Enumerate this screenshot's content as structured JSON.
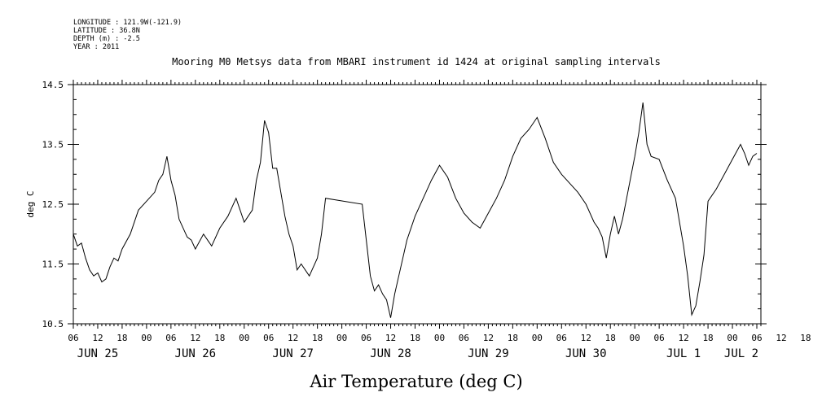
{
  "meta": {
    "longitude": "LONGITUDE : 121.9W(-121.9)",
    "latitude": "LATITUDE : 36.8N",
    "depth": "DEPTH (m) : -2.5",
    "year": "YEAR : 2011"
  },
  "chart_data": {
    "type": "line",
    "title": "Mooring M0 Metsys data from MBARI instrument id 1424 at original sampling intervals",
    "xlabel": "Air Temperature (deg C)",
    "ylabel": "deg C",
    "ylim": [
      10.5,
      14.5
    ],
    "xlim": [
      "2011-06-25 06:00",
      "2011-07-02 07:00"
    ],
    "yticks": [
      "10.5",
      "11.5",
      "12.5",
      "13.5",
      "14.5"
    ],
    "yticks_minor_step": 0.25,
    "xtick_hours": [
      "06",
      "12",
      "18",
      "00",
      "06",
      "12",
      "18",
      "00",
      "06",
      "12",
      "18",
      "00",
      "06",
      "12",
      "18",
      "00",
      "06",
      "12",
      "18",
      "00",
      "06",
      "12",
      "18",
      "00",
      "06",
      "12",
      "18",
      "00",
      "06",
      "12",
      "18",
      "00",
      "06"
    ],
    "day_labels": [
      "JUN 25",
      "JUN 26",
      "JUN 27",
      "JUN 28",
      "JUN 29",
      "JUN 30",
      "JUL 1",
      "JUL 2"
    ],
    "grid": false,
    "legend": "none",
    "series": [
      {
        "x": [
          "2011-06-25 06:00",
          "2011-06-25 07:00",
          "2011-06-25 08:00",
          "2011-06-25 09:00",
          "2011-06-25 10:00",
          "2011-06-25 11:00",
          "2011-06-25 12:00",
          "2011-06-25 13:00",
          "2011-06-25 14:00",
          "2011-06-25 15:00",
          "2011-06-25 16:00",
          "2011-06-25 17:00",
          "2011-06-25 18:00",
          "2011-06-25 20:00",
          "2011-06-25 22:00",
          "2011-06-26 00:00",
          "2011-06-26 02:00",
          "2011-06-26 03:00",
          "2011-06-26 04:00",
          "2011-06-26 05:00",
          "2011-06-26 06:00",
          "2011-06-26 07:00",
          "2011-06-26 08:00",
          "2011-06-26 10:00",
          "2011-06-26 11:00",
          "2011-06-26 12:00",
          "2011-06-26 14:00",
          "2011-06-26 16:00",
          "2011-06-26 18:00",
          "2011-06-26 20:00",
          "2011-06-26 22:00",
          "2011-06-27 00:00",
          "2011-06-27 01:00",
          "2011-06-27 02:00",
          "2011-06-27 03:00",
          "2011-06-27 04:00",
          "2011-06-27 05:00",
          "2011-06-27 06:00",
          "2011-06-27 07:00",
          "2011-06-27 08:00",
          "2011-06-27 09:00",
          "2011-06-27 10:00",
          "2011-06-27 11:00",
          "2011-06-27 12:00",
          "2011-06-27 13:00",
          "2011-06-27 14:00",
          "2011-06-27 16:00",
          "2011-06-27 18:00",
          "2011-06-27 19:00",
          "2011-06-27 20:00",
          "2011-06-28 05:00",
          "2011-06-28 06:00",
          "2011-06-28 07:00",
          "2011-06-28 08:00",
          "2011-06-28 09:00",
          "2011-06-28 10:00",
          "2011-06-28 11:00",
          "2011-06-28 12:00",
          "2011-06-28 13:00",
          "2011-06-28 14:00",
          "2011-06-28 15:00",
          "2011-06-28 16:00",
          "2011-06-28 18:00",
          "2011-06-28 20:00",
          "2011-06-28 22:00",
          "2011-06-29 00:00",
          "2011-06-29 02:00",
          "2011-06-29 04:00",
          "2011-06-29 06:00",
          "2011-06-29 08:00",
          "2011-06-29 10:00",
          "2011-06-29 12:00",
          "2011-06-29 14:00",
          "2011-06-29 16:00",
          "2011-06-29 18:00",
          "2011-06-29 20:00",
          "2011-06-29 22:00",
          "2011-06-30 00:00",
          "2011-06-30 02:00",
          "2011-06-30 04:00",
          "2011-06-30 06:00",
          "2011-06-30 08:00",
          "2011-06-30 10:00",
          "2011-06-30 12:00",
          "2011-06-30 14:00",
          "2011-06-30 15:00",
          "2011-06-30 16:00",
          "2011-06-30 17:00",
          "2011-06-30 18:00",
          "2011-06-30 19:00",
          "2011-06-30 20:00",
          "2011-06-30 21:00",
          "2011-06-30 22:00",
          "2011-07-01 00:00",
          "2011-07-01 01:00",
          "2011-07-01 02:00",
          "2011-07-01 03:00",
          "2011-07-01 04:00",
          "2011-07-01 06:00",
          "2011-07-01 08:00",
          "2011-07-01 10:00",
          "2011-07-01 12:00",
          "2011-07-01 13:00",
          "2011-07-01 14:00",
          "2011-07-01 15:00",
          "2011-07-01 16:00",
          "2011-07-01 17:00",
          "2011-07-01 18:00",
          "2011-07-01 20:00",
          "2011-07-01 22:00",
          "2011-07-02 00:00",
          "2011-07-02 02:00",
          "2011-07-02 03:00",
          "2011-07-02 04:00",
          "2011-07-02 05:00",
          "2011-07-02 06:00"
        ],
        "y": [
          12.0,
          11.8,
          11.85,
          11.6,
          11.4,
          11.3,
          11.35,
          11.2,
          11.25,
          11.45,
          11.6,
          11.55,
          11.75,
          12.0,
          12.4,
          12.55,
          12.7,
          12.9,
          13.0,
          13.3,
          12.9,
          12.65,
          12.25,
          11.95,
          11.9,
          11.75,
          12.0,
          11.8,
          12.1,
          12.3,
          12.6,
          12.2,
          12.3,
          12.4,
          12.9,
          13.2,
          13.9,
          13.7,
          13.1,
          13.1,
          12.7,
          12.3,
          12.0,
          11.8,
          11.4,
          11.5,
          11.3,
          11.6,
          12.0,
          12.6,
          12.5,
          11.9,
          11.3,
          11.05,
          11.15,
          11.0,
          10.9,
          10.6,
          11.0,
          11.3,
          11.6,
          11.9,
          12.3,
          12.6,
          12.9,
          13.15,
          12.95,
          12.6,
          12.35,
          12.2,
          12.1,
          12.35,
          12.6,
          12.9,
          13.3,
          13.6,
          13.75,
          13.95,
          13.6,
          13.2,
          13.0,
          12.85,
          12.7,
          12.5,
          12.2,
          12.1,
          11.95,
          11.6,
          12.0,
          12.3,
          12.0,
          12.25,
          12.6,
          13.3,
          13.7,
          14.2,
          13.5,
          13.3,
          13.25,
          12.9,
          12.6,
          11.8,
          11.3,
          10.65,
          10.8,
          11.2,
          11.65,
          12.55,
          12.75,
          13.0,
          13.25,
          13.5,
          13.35,
          13.15,
          13.3,
          13.35
        ]
      }
    ]
  }
}
